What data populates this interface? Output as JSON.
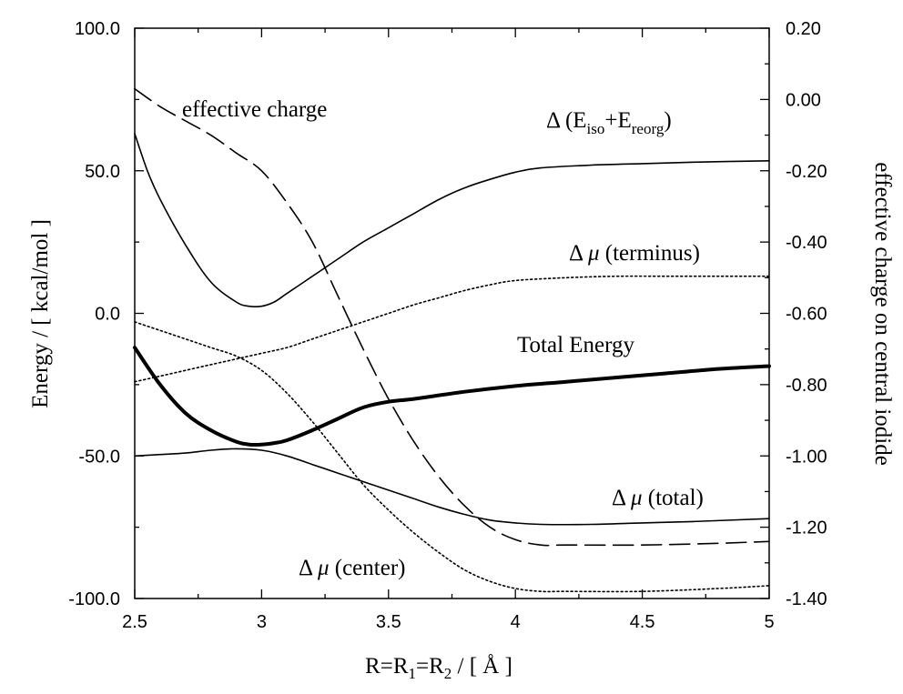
{
  "chart_data": {
    "type": "line",
    "title": "",
    "xlabel": {
      "main": "R=R",
      "sub1": "1",
      "mid": "=R",
      "sub2": "2",
      "unit": " / [  Å  ]"
    },
    "ylabel": "Energy / [ kcal/mol ]",
    "y2label": "effective charge on central iodide",
    "xlim": [
      2.5,
      5.0
    ],
    "ylim": [
      -100,
      100
    ],
    "y2lim": [
      -1.4,
      0.2
    ],
    "x_ticks": [
      "2.5",
      "3",
      "3.5",
      "4",
      "4.5",
      "5"
    ],
    "y_ticks": [
      "100.0",
      "50.0",
      "0.0",
      "-50.0",
      "-100.0"
    ],
    "y2_ticks": [
      "0.20",
      "0.00",
      "-0.20",
      "-0.40",
      "-0.60",
      "-0.80",
      "-1.00",
      "-1.20",
      "-1.40"
    ],
    "grid": false,
    "series": [
      {
        "name": "effective charge",
        "axis": "right",
        "style": "dashed",
        "x": [
          2.5,
          2.6,
          2.7,
          2.8,
          2.9,
          3.0,
          3.1,
          3.2,
          3.3,
          3.4,
          3.5,
          3.6,
          3.7,
          3.8,
          3.9,
          4.0,
          4.1,
          4.2,
          4.5,
          4.8,
          5.0
        ],
        "y": [
          0.03,
          -0.02,
          -0.06,
          -0.1,
          -0.15,
          -0.2,
          -0.29,
          -0.4,
          -0.55,
          -0.7,
          -0.84,
          -0.96,
          -1.06,
          -1.14,
          -1.2,
          -1.235,
          -1.25,
          -1.25,
          -1.25,
          -1.245,
          -1.24
        ]
      },
      {
        "name": "Δ (Eiso+Ereorg)",
        "label_parts": [
          "Δ (E",
          "iso",
          "+E",
          "reorg",
          ")"
        ],
        "axis": "left",
        "style": "solid",
        "x": [
          2.5,
          2.55,
          2.6,
          2.7,
          2.8,
          2.9,
          2.95,
          3.0,
          3.05,
          3.1,
          3.2,
          3.3,
          3.4,
          3.5,
          3.6,
          3.7,
          3.8,
          3.9,
          4.0,
          4.1,
          4.3,
          4.5,
          4.7,
          5.0
        ],
        "y": [
          63,
          50,
          40,
          24,
          11,
          4,
          2.5,
          2.5,
          4,
          7,
          13,
          19,
          25,
          30,
          35,
          40,
          44,
          47,
          49.5,
          51,
          52,
          52.5,
          53,
          53.5
        ]
      },
      {
        "name": "Δ μ (terminus)",
        "label_parts": [
          "Δ ",
          "μ",
          " (terminus)"
        ],
        "axis": "left",
        "style": "dotted",
        "x": [
          2.5,
          2.6,
          2.7,
          2.8,
          2.9,
          3.0,
          3.1,
          3.2,
          3.3,
          3.4,
          3.5,
          3.6,
          3.7,
          3.8,
          3.9,
          4.0,
          4.2,
          4.4,
          4.6,
          4.8,
          5.0
        ],
        "y": [
          -24,
          -22,
          -20,
          -18,
          -16,
          -14,
          -12,
          -9,
          -6,
          -3,
          0,
          3,
          5.5,
          8,
          10,
          11.5,
          12.5,
          13,
          13,
          13,
          13
        ]
      },
      {
        "name": "Total Energy",
        "axis": "left",
        "style": "bold",
        "x": [
          2.5,
          2.6,
          2.7,
          2.8,
          2.9,
          2.95,
          3.0,
          3.05,
          3.1,
          3.2,
          3.3,
          3.4,
          3.5,
          3.6,
          3.8,
          4.0,
          4.2,
          4.4,
          4.6,
          4.8,
          5.0
        ],
        "y": [
          -12,
          -25,
          -35,
          -41,
          -45,
          -46,
          -46,
          -45.5,
          -44.5,
          -41,
          -37,
          -33,
          -31,
          -30,
          -27.5,
          -25.5,
          -24,
          -22.5,
          -21,
          -19.5,
          -18.5
        ]
      },
      {
        "name": "Δ μ (total)",
        "label_parts": [
          "Δ ",
          "μ",
          "  (total)"
        ],
        "axis": "left",
        "style": "solid",
        "x": [
          2.5,
          2.6,
          2.7,
          2.8,
          2.9,
          3.0,
          3.1,
          3.2,
          3.3,
          3.4,
          3.5,
          3.6,
          3.7,
          3.8,
          3.9,
          4.0,
          4.1,
          4.3,
          4.5,
          4.7,
          5.0
        ],
        "y": [
          -50,
          -49.5,
          -49,
          -48,
          -47.5,
          -48,
          -50,
          -53,
          -56,
          -59,
          -62,
          -65,
          -68,
          -70.5,
          -72.5,
          -73.5,
          -74,
          -74,
          -73.5,
          -73,
          -72
        ]
      },
      {
        "name": "Δ μ (center)",
        "label_parts": [
          "Δ ",
          "μ",
          "  (center)"
        ],
        "axis": "left",
        "style": "dotted",
        "x": [
          2.5,
          2.6,
          2.7,
          2.8,
          2.9,
          3.0,
          3.1,
          3.2,
          3.3,
          3.4,
          3.5,
          3.6,
          3.7,
          3.8,
          3.9,
          4.0,
          4.1,
          4.2,
          4.5,
          4.8,
          5.0
        ],
        "y": [
          -3,
          -6,
          -9,
          -12,
          -15,
          -20,
          -28,
          -38,
          -49,
          -60,
          -69,
          -77,
          -84,
          -90,
          -94,
          -96.5,
          -97.5,
          -97.5,
          -97.5,
          -96.5,
          -95.5
        ]
      }
    ]
  }
}
